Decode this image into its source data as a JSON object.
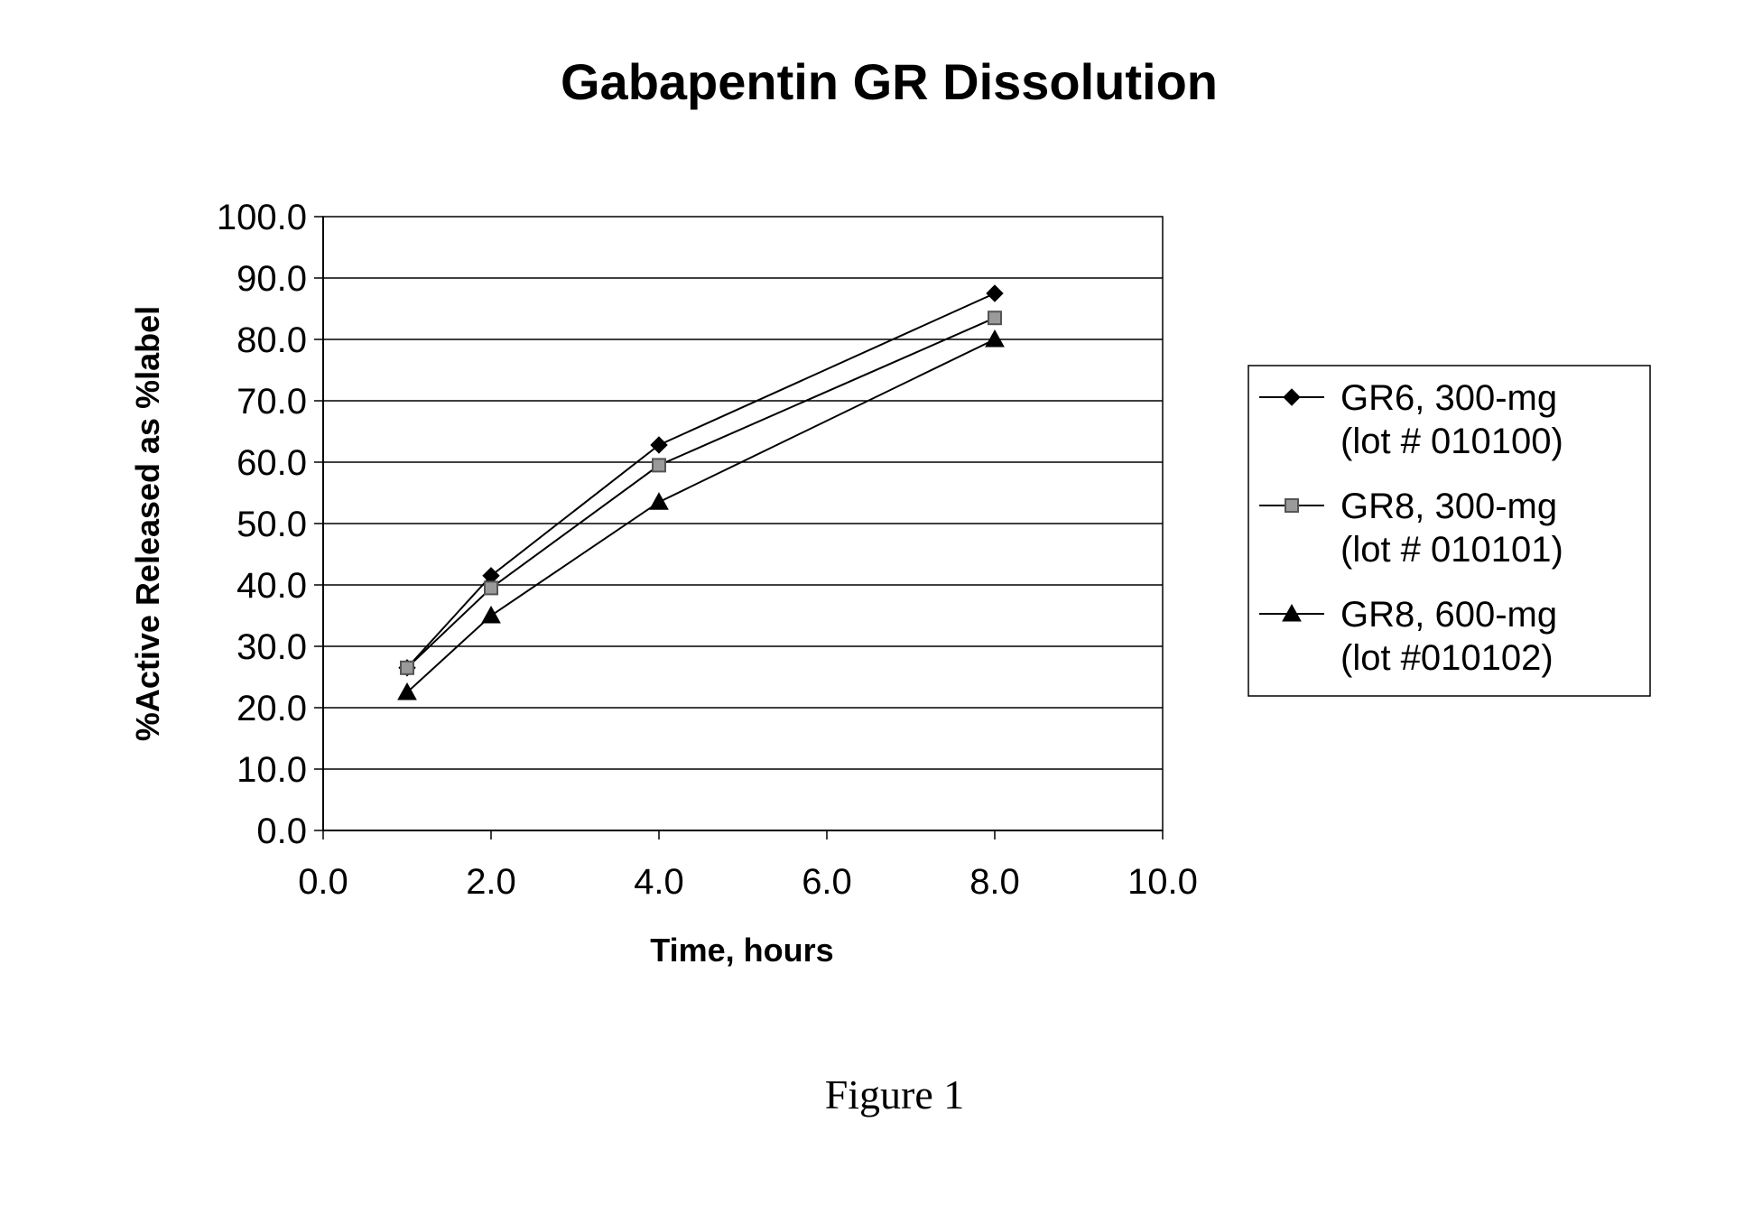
{
  "caption": "Figure 1",
  "chart_data": {
    "type": "line",
    "title": "Gabapentin GR Dissolution",
    "xlabel": "Time, hours",
    "ylabel": "%Active Released as %label",
    "xlim": [
      0,
      10
    ],
    "ylim": [
      0,
      100
    ],
    "x_ticks": [
      "0.0",
      "2.0",
      "4.0",
      "6.0",
      "8.0",
      "10.0"
    ],
    "y_ticks": [
      "0.0",
      "10.0",
      "20.0",
      "30.0",
      "40.0",
      "50.0",
      "60.0",
      "70.0",
      "80.0",
      "90.0",
      "100.0"
    ],
    "grid": "horizontal",
    "legend_position": "right",
    "series": [
      {
        "name_line1": "GR6, 300-mg",
        "name_line2": "(lot # 010100)",
        "marker": "diamond",
        "marker_color": "#000000",
        "x": [
          1,
          2,
          4,
          8
        ],
        "y": [
          26.5,
          41.5,
          62.8,
          87.5
        ]
      },
      {
        "name_line1": "GR8, 300-mg",
        "name_line2": "(lot # 010101)",
        "marker": "square",
        "marker_color": "#9a9a9a",
        "x": [
          1,
          2,
          4,
          8
        ],
        "y": [
          26.5,
          39.5,
          59.5,
          83.5
        ]
      },
      {
        "name_line1": "GR8, 600-mg",
        "name_line2": "(lot #010102)",
        "marker": "triangle",
        "marker_color": "#000000",
        "x": [
          1,
          2,
          4,
          8
        ],
        "y": [
          22.5,
          35.0,
          53.5,
          80.0
        ]
      }
    ]
  }
}
